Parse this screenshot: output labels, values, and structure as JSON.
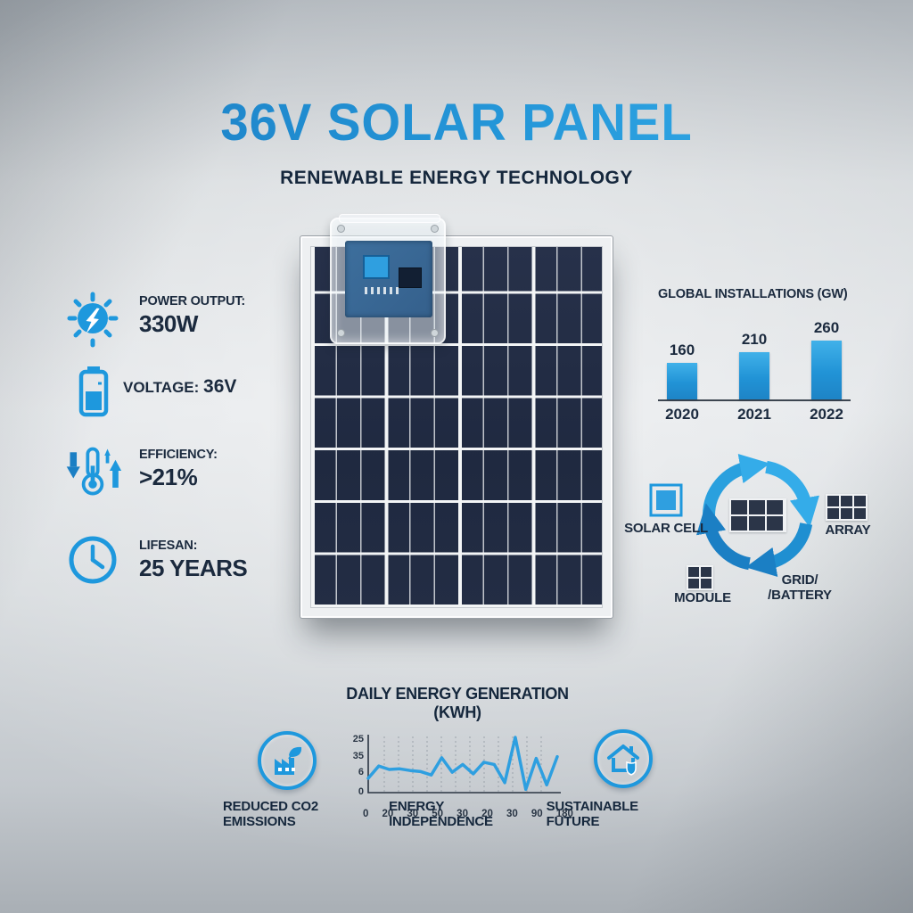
{
  "header": {
    "title": "36V SOLAR PANEL",
    "subtitle": "RENEWABLE ENERGY TECHNOLOGY"
  },
  "specs": {
    "power": {
      "label": "POWER OUTPUT:",
      "value": "330W"
    },
    "voltage": {
      "label": "VOLTAGE:",
      "value": "36V"
    },
    "efficiency": {
      "label": "EFFICIENCY:",
      "value": ">21%"
    },
    "lifespan": {
      "label": "LIFESAN:",
      "value": "25 YEARS"
    }
  },
  "chart_data": [
    {
      "type": "bar",
      "title": "GLOBAL INSTALLATIONS (GW)",
      "categories": [
        "2020",
        "2021",
        "2022"
      ],
      "values": [
        160,
        210,
        260
      ],
      "xlabel": "",
      "ylabel": "",
      "ylim": [
        0,
        260
      ],
      "grid": false,
      "legend": false,
      "bar_color": "#2193d6"
    },
    {
      "type": "line",
      "title": "DAILY ENERGY GENERATION (KWH)",
      "y_ticks": [
        "25",
        "35",
        "6",
        "0"
      ],
      "x_ticks": [
        "0",
        "20",
        "30",
        "50",
        "30",
        "20",
        "30",
        "90",
        "180"
      ],
      "values": [
        26,
        48,
        42,
        43,
        40,
        38,
        32,
        63,
        37,
        51,
        34,
        55,
        51,
        18,
        100,
        6,
        62,
        14,
        65
      ],
      "ylim": [
        0,
        100
      ],
      "grid": "vertical-dashed",
      "line_color": "#2e9fe0"
    }
  ],
  "cycle": {
    "center_icon": "solar-module-icon",
    "cell_label": "SOLAR CELL",
    "array_label": "ARRAY",
    "module_label": "MODULE",
    "grid_label_line1": "GRID/",
    "grid_label_line2": "/BATTERY"
  },
  "footer": {
    "items": [
      "REDUCED CO2 EMISSIONS",
      "ENERGY INDEPENDENCE",
      "SUSTAINABLE FUTURE"
    ]
  },
  "colors": {
    "accent": "#1e98dd",
    "accent_dark": "#1b7fc4",
    "title_gradient_start": "#1b7dc3",
    "title_gradient_end": "#35aeea",
    "dark_text": "#1b2a3e",
    "panel_cell": "#222b40"
  }
}
